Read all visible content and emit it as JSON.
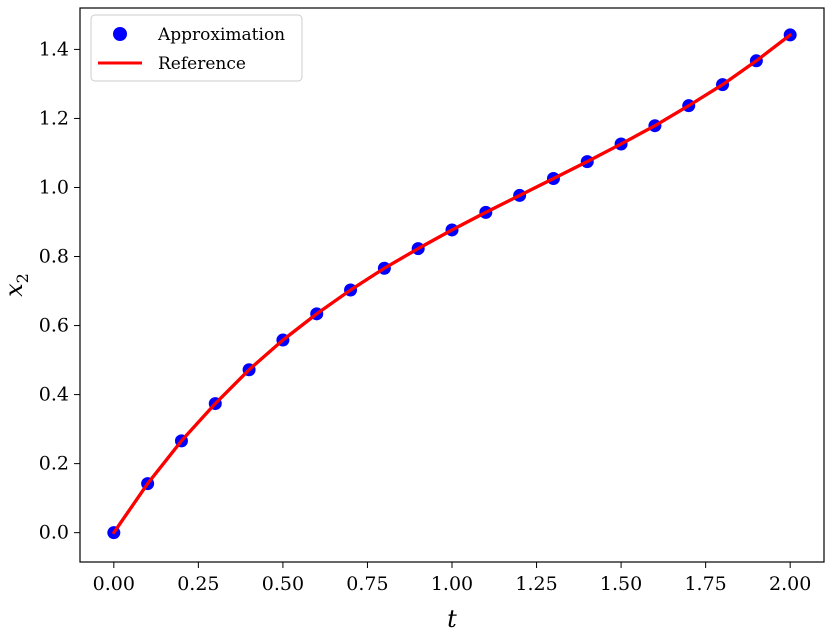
{
  "chart_data": {
    "type": "line",
    "xlabel": "t",
    "ylabel": {
      "base": "x",
      "subscript": "2"
    },
    "xlim": [
      -0.1,
      2.1
    ],
    "ylim": [
      -0.085,
      1.52
    ],
    "xticks": [
      0.0,
      0.25,
      0.5,
      0.75,
      1.0,
      1.25,
      1.5,
      1.75,
      2.0
    ],
    "xtick_labels": [
      "0.00",
      "0.25",
      "0.50",
      "0.75",
      "1.00",
      "1.25",
      "1.50",
      "1.75",
      "2.00"
    ],
    "yticks": [
      0.0,
      0.2,
      0.4,
      0.6,
      0.8,
      1.0,
      1.2,
      1.4
    ],
    "ytick_labels": [
      "0.0",
      "0.2",
      "0.4",
      "0.6",
      "0.8",
      "1.0",
      "1.2",
      "1.4"
    ],
    "grid": false,
    "legend_position": "top-left",
    "series": [
      {
        "name": "Approximation",
        "kind": "scatter",
        "color": "#0000ff",
        "x": [
          0.0,
          0.1,
          0.2,
          0.3,
          0.4,
          0.5,
          0.6,
          0.7,
          0.8,
          0.9,
          1.0,
          1.1,
          1.2,
          1.3,
          1.4,
          1.5,
          1.6,
          1.7,
          1.8,
          1.9,
          2.0
        ],
        "y": [
          0.0,
          0.142,
          0.266,
          0.374,
          0.472,
          0.558,
          0.634,
          0.703,
          0.766,
          0.823,
          0.877,
          0.928,
          0.977,
          1.026,
          1.075,
          1.126,
          1.179,
          1.237,
          1.298,
          1.367,
          1.442
        ]
      },
      {
        "name": "Reference",
        "kind": "line",
        "color": "#ff0000",
        "x": [
          0.0,
          0.1,
          0.2,
          0.3,
          0.4,
          0.5,
          0.6,
          0.7,
          0.8,
          0.9,
          1.0,
          1.1,
          1.2,
          1.3,
          1.4,
          1.5,
          1.6,
          1.7,
          1.8,
          1.9,
          2.0
        ],
        "y": [
          0.0,
          0.142,
          0.266,
          0.374,
          0.472,
          0.558,
          0.634,
          0.703,
          0.766,
          0.823,
          0.877,
          0.928,
          0.977,
          1.026,
          1.075,
          1.126,
          1.179,
          1.237,
          1.298,
          1.367,
          1.442
        ]
      }
    ]
  }
}
